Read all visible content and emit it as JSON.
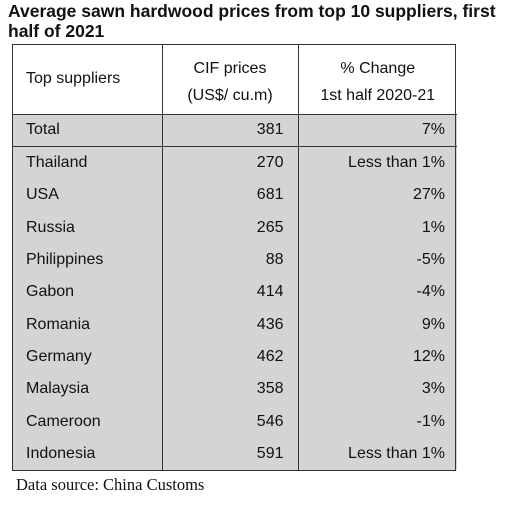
{
  "title": "Average sawn hardwood prices from top 10 suppliers, first half of 2021",
  "columns": {
    "supplier": "Top suppliers",
    "price_line1": "CIF prices",
    "price_line2": "(US$/ cu.m)",
    "change_line1": "% Change",
    "change_line2": "1st half 2020-21"
  },
  "total": {
    "name": "Total",
    "price": "381",
    "change": "7%"
  },
  "rows": [
    {
      "name": "Thailand",
      "price": "270",
      "change": "Less than 1%"
    },
    {
      "name": "USA",
      "price": "681",
      "change": "27%"
    },
    {
      "name": "Russia",
      "price": "265",
      "change": "1%"
    },
    {
      "name": "Philippines",
      "price": "88",
      "change": "-5%"
    },
    {
      "name": "Gabon",
      "price": "414",
      "change": "-4%"
    },
    {
      "name": "Romania",
      "price": "436",
      "change": "9%"
    },
    {
      "name": "Germany",
      "price": "462",
      "change": "12%"
    },
    {
      "name": "Malaysia",
      "price": "358",
      "change": "3%"
    },
    {
      "name": "Cameroon",
      "price": "546",
      "change": "-1%"
    },
    {
      "name": "Indonesia",
      "price": "591",
      "change": "Less than 1%"
    }
  ],
  "source": "Data source: China Customs",
  "colors": {
    "body_fill": "#d4d4d4",
    "header_fill": "#ffffff",
    "border": "#333333"
  },
  "chart_data": {
    "type": "table",
    "title": "Average sawn hardwood prices from top 10 suppliers, first half of 2021",
    "columns": [
      "Top suppliers",
      "CIF prices (US$/ cu.m)",
      "% Change 1st half 2020-21"
    ],
    "rows": [
      [
        "Total",
        381,
        "7%"
      ],
      [
        "Thailand",
        270,
        "Less than 1%"
      ],
      [
        "USA",
        681,
        "27%"
      ],
      [
        "Russia",
        265,
        "1%"
      ],
      [
        "Philippines",
        88,
        "-5%"
      ],
      [
        "Gabon",
        414,
        "-4%"
      ],
      [
        "Romania",
        436,
        "9%"
      ],
      [
        "Germany",
        462,
        "12%"
      ],
      [
        "Malaysia",
        358,
        "3%"
      ],
      [
        "Cameroon",
        546,
        "-1%"
      ],
      [
        "Indonesia",
        591,
        "Less than 1%"
      ]
    ]
  }
}
